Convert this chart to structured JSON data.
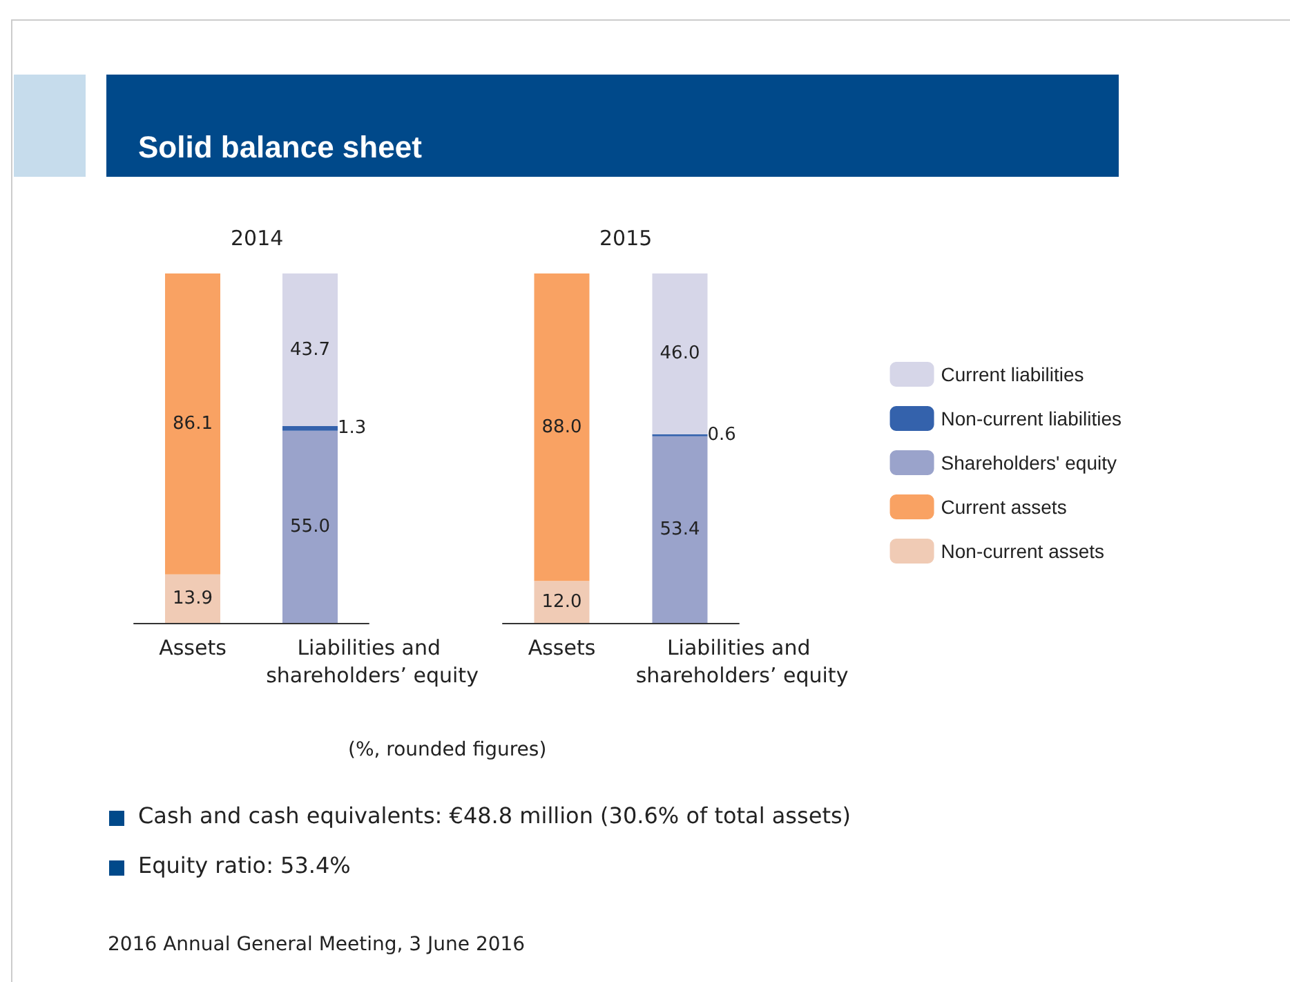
{
  "chart_data": [
    {
      "type": "other",
      "title": "Solid balance sheet",
      "annotations": [
        "(%, rounded figures)",
        "Cash and cash equivalents: €48.8 million (30.6% of total assets)",
        "Equity ratio: 53.4%",
        "2016 Annual General Meeting, 3 June 2016"
      ]
    },
    {
      "type": "bar",
      "title": "2014",
      "stacked": true,
      "legend": false,
      "categories": [
        "Assets",
        "Liabilities and shareholders’ equity"
      ],
      "series": [
        {
          "color": "#f0cbb5",
          "values": [
            13.9,
            null
          ],
          "value_labels": [
            "13.9",
            null
          ]
        },
        {
          "color": "#f9a263",
          "values": [
            86.1,
            null
          ],
          "value_labels": [
            "86.1",
            null
          ]
        },
        {
          "color": "#9aa3cb",
          "values": [
            null,
            55.0
          ],
          "value_labels": [
            null,
            "55.0"
          ]
        },
        {
          "color": "#3462ac",
          "values": [
            null,
            1.3
          ],
          "value_labels": [
            null,
            "1.3"
          ]
        },
        {
          "color": "#d6d6e8",
          "values": [
            null,
            43.7
          ],
          "value_labels": [
            null,
            "43.7"
          ]
        }
      ]
    },
    {
      "type": "bar",
      "title": "2015",
      "stacked": true,
      "legend": "right",
      "categories": [
        "Assets",
        "Liabilities and shareholders’ equity"
      ],
      "series": [
        {
          "name": "Non-current assets",
          "color": "#f0cbb5",
          "values": [
            12.0,
            null
          ],
          "value_labels": [
            "12.0",
            null
          ]
        },
        {
          "name": "Current assets",
          "color": "#f9a263",
          "values": [
            88.0,
            null
          ],
          "value_labels": [
            "88.0",
            null
          ]
        },
        {
          "name": "Shareholders' equity",
          "color": "#9aa3cb",
          "values": [
            null,
            53.4
          ],
          "value_labels": [
            null,
            "53.4"
          ]
        },
        {
          "name": "Non-current liabilities",
          "color": "#3462ac",
          "values": [
            null,
            0.6
          ],
          "value_labels": [
            null,
            "0.6"
          ]
        },
        {
          "name": "Current liabilities",
          "color": "#d6d6e8",
          "values": [
            null,
            46.0
          ],
          "value_labels": [
            null,
            "46.0"
          ]
        }
      ]
    }
  ]
}
